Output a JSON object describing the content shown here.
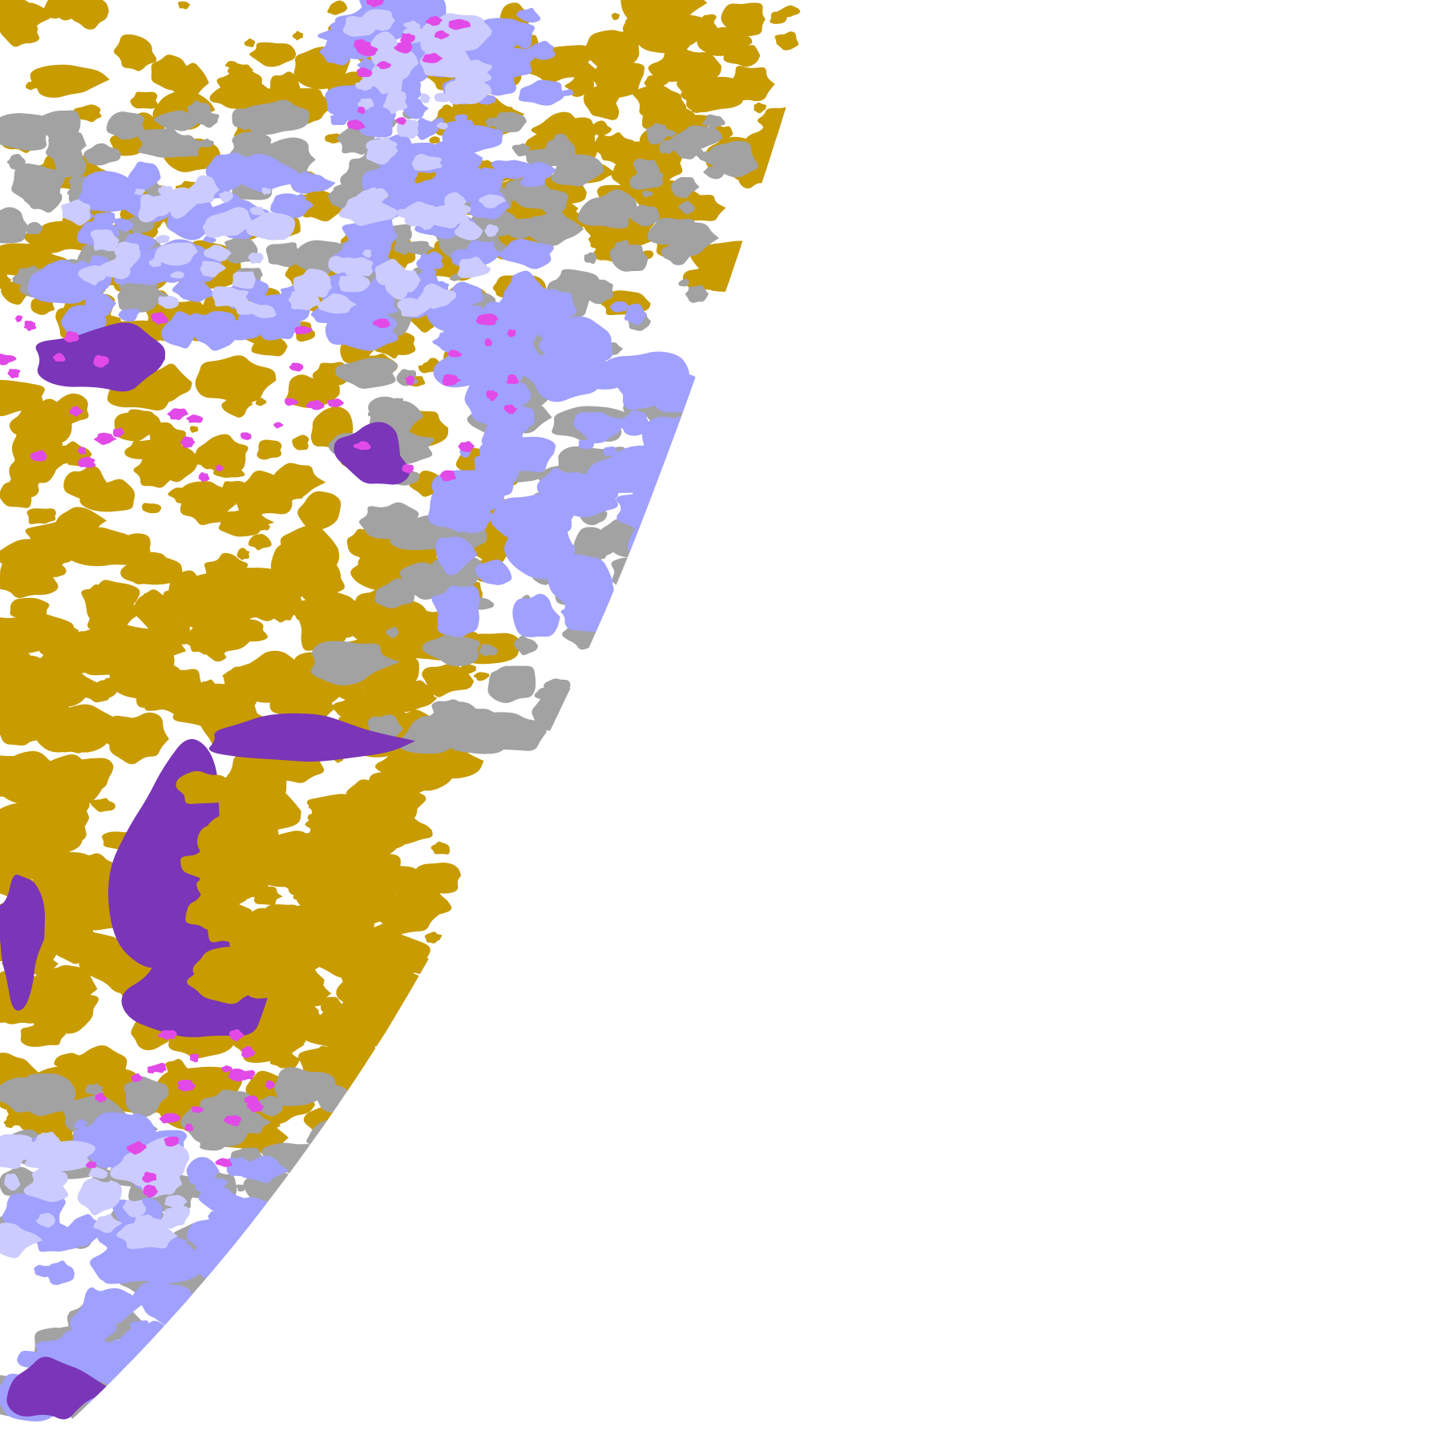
{
  "map": {
    "kind": "satellite cloud-type classification, full-disk edge",
    "background_color": "#ffffff",
    "class_colors": {
      "low_cloud": "#c89b00",
      "thick_high_cloud": "#7a35b8",
      "thin_cirrus": "#a0a0ff",
      "very_thin_cirrus": "#cbcbff",
      "mid_cloud": "#a2a2a2",
      "overshooting": "#e24ae8"
    }
  }
}
